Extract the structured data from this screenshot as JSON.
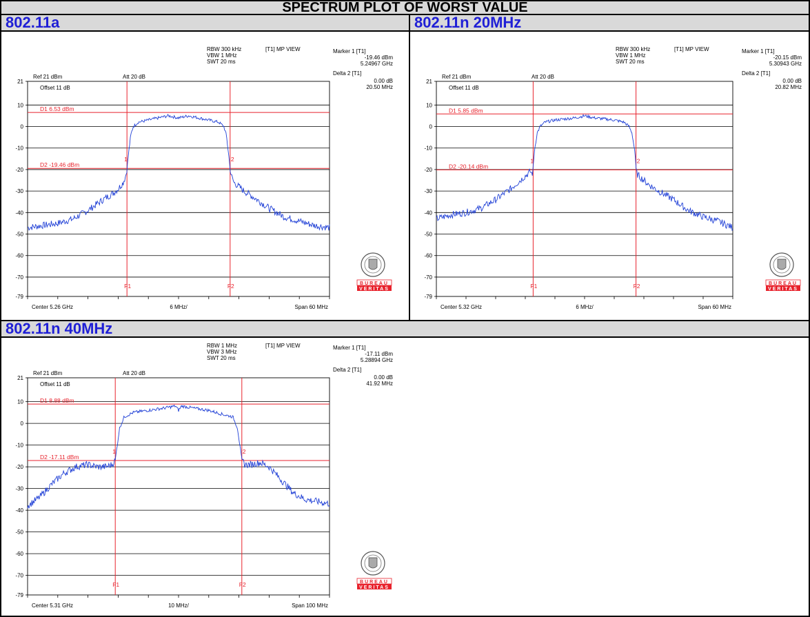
{
  "page_title": "SPECTRUM PLOT OF WORST VALUE",
  "colors": {
    "title_text": "#1f1fd6",
    "header_bg": "#d9d9d9",
    "trace": "#1f3fd6",
    "markers": "#e8222c",
    "logo_red": "#e8222c"
  },
  "logo": {
    "icon": "bureau-veritas-seal-icon",
    "text_top": "BUREAU",
    "text_bottom": "VERITAS"
  },
  "plots": [
    {
      "title": "802.11a",
      "rbw": "RBW 300 kHz",
      "vbw": "VBW 1 MHz",
      "swt": "SWT 20 ms",
      "view": "[T1] MP VIEW",
      "ref": "Ref 21 dBm",
      "att": "Att 20 dB",
      "offset": "Offset 11 dB",
      "marker1_label": "Marker 1 [T1]",
      "marker1_val": "-19.46 dBm",
      "marker1_freq": "5.24967 GHz",
      "delta_label": "Delta 2 [T1]",
      "delta_val": "0.00 dB",
      "delta_freq": "20.50 MHz",
      "d1_label": "D1 6.53 dBm",
      "d2_label": "D2 -19.46 dBm",
      "center": "Center 5.26 GHz",
      "div": "6 MHz/",
      "span": "Span 60 MHz",
      "f1_label": "F1",
      "f2_label": "F2",
      "m1": "1",
      "m2": "2"
    },
    {
      "title": "802.11n 20MHz",
      "rbw": "RBW 300 kHz",
      "vbw": "VBW 1 MHz",
      "swt": "SWT 20 ms",
      "view": "[T1] MP VIEW",
      "ref": "Ref 21 dBm",
      "att": "Att 20 dB",
      "offset": "Offset 11 dB",
      "marker1_label": "Marker 1 [T1]",
      "marker1_val": "-20.15 dBm",
      "marker1_freq": "5.30943 GHz",
      "delta_label": "Delta 2 [T1]",
      "delta_val": "0.00 dB",
      "delta_freq": "20.82 MHz",
      "d1_label": "D1 5.85 dBm",
      "d2_label": "D2 -20.14 dBm",
      "center": "Center 5.32 GHz",
      "div": "6 MHz/",
      "span": "Span 60 MHz",
      "f1_label": "F1",
      "f2_label": "F2",
      "m1": "1",
      "m2": "2"
    },
    {
      "title": "802.11n 40MHz",
      "rbw": "RBW 1 MHz",
      "vbw": "VBW 3 MHz",
      "swt": "SWT 20 ms",
      "view": "[T1] MP VIEW",
      "ref": "Ref 21 dBm",
      "att": "Att 20 dB",
      "offset": "Offset 11 dB",
      "marker1_label": "Marker 1 [T1]",
      "marker1_val": "-17.11 dBm",
      "marker1_freq": "5.28894 GHz",
      "delta_label": "Delta 2 [T1]",
      "delta_val": "0.00 dB",
      "delta_freq": "41.92 MHz",
      "d1_label": "D1 8.88 dBm",
      "d2_label": "D2 -17.11 dBm",
      "center": "Center 5.31 GHz",
      "div": "10 MHz/",
      "span": "Span 100 MHz",
      "f1_label": "F1",
      "f2_label": "F2",
      "m1": "1",
      "m2": "2"
    }
  ],
  "chart_data": [
    {
      "type": "line",
      "ylim": [
        -79,
        21
      ],
      "yticks": [
        "21",
        "10",
        "0",
        "-10",
        "-20",
        "-30",
        "-40",
        "-50",
        "-60",
        "-70",
        "-79"
      ],
      "xlim_mhz": [
        -30,
        30
      ],
      "d1_dbm": 6.53,
      "d2_dbm": -19.46,
      "f1_mhz": -10.25,
      "f2_mhz": 10.25,
      "series": [
        {
          "x": [
            -30,
            -27,
            -24,
            -21,
            -18,
            -15,
            -13,
            -12,
            -11,
            -10.5,
            -10.25,
            -10,
            -9.5,
            -9,
            -8,
            -6,
            -4,
            -2,
            0,
            2,
            4,
            6,
            8,
            9,
            9.5,
            10,
            10.25,
            10.5,
            11,
            12,
            13,
            15,
            18,
            21,
            24,
            27,
            30
          ],
          "y": [
            -47,
            -46,
            -45,
            -43,
            -39,
            -34,
            -31,
            -29,
            -26,
            -23,
            -19.5,
            -14,
            -4,
            0,
            2,
            3,
            4,
            5,
            4,
            5,
            4,
            3,
            2,
            0,
            -4,
            -14,
            -19.5,
            -23,
            -26,
            -28,
            -30,
            -33,
            -38,
            -42,
            -44,
            -46,
            -47
          ]
        }
      ]
    },
    {
      "type": "line",
      "ylim": [
        -79,
        21
      ],
      "yticks": [
        "21",
        "10",
        "0",
        "-10",
        "-20",
        "-30",
        "-40",
        "-50",
        "-60",
        "-70",
        "-79"
      ],
      "xlim_mhz": [
        -30,
        30
      ],
      "d1_dbm": 5.85,
      "d2_dbm": -20.14,
      "f1_mhz": -10.41,
      "f2_mhz": 10.41,
      "series": [
        {
          "x": [
            -30,
            -27,
            -24,
            -21,
            -18,
            -15,
            -13,
            -12,
            -11,
            -10.6,
            -10.41,
            -10.2,
            -9.6,
            -9,
            -8,
            -6,
            -4,
            -2,
            0,
            2,
            4,
            6,
            8,
            9,
            9.6,
            10.2,
            10.41,
            10.6,
            11,
            12,
            13,
            15,
            18,
            21,
            24,
            27,
            30
          ],
          "y": [
            -43,
            -41,
            -40,
            -38,
            -34,
            -29,
            -25,
            -23,
            -21,
            -22,
            -20,
            -12,
            -3,
            0,
            2,
            3,
            3.5,
            4,
            5,
            4,
            3.5,
            3,
            2,
            0,
            -3,
            -12,
            -20,
            -22,
            -23,
            -25,
            -27,
            -30,
            -34,
            -39,
            -42,
            -44,
            -47
          ]
        }
      ]
    },
    {
      "type": "line",
      "ylim": [
        -79,
        21
      ],
      "yticks": [
        "21",
        "10",
        "0",
        "-10",
        "-20",
        "-30",
        "-40",
        "-50",
        "-60",
        "-70",
        "-79"
      ],
      "xlim_mhz": [
        -50,
        50
      ],
      "d1_dbm": 8.88,
      "d2_dbm": -17.11,
      "f1_mhz": -20.96,
      "f2_mhz": 20.96,
      "series": [
        {
          "x": [
            -50,
            -46,
            -42,
            -38,
            -34,
            -30,
            -27,
            -24,
            -22,
            -21.5,
            -20.96,
            -20.5,
            -19.5,
            -18,
            -15,
            -10,
            -5,
            -1,
            0,
            1,
            5,
            10,
            15,
            18,
            19.5,
            20.5,
            20.96,
            21.5,
            22,
            24,
            27,
            30,
            34,
            38,
            42,
            46,
            50
          ],
          "y": [
            -38,
            -34,
            -28,
            -23,
            -20,
            -19,
            -20,
            -20,
            -19,
            -18,
            -17,
            -12,
            -2,
            3,
            5,
            6,
            7,
            8,
            6,
            8,
            7,
            6,
            4,
            3,
            -2,
            -12,
            -17,
            -18,
            -19,
            -19,
            -18,
            -20,
            -26,
            -32,
            -35,
            -36,
            -37
          ]
        }
      ]
    }
  ]
}
